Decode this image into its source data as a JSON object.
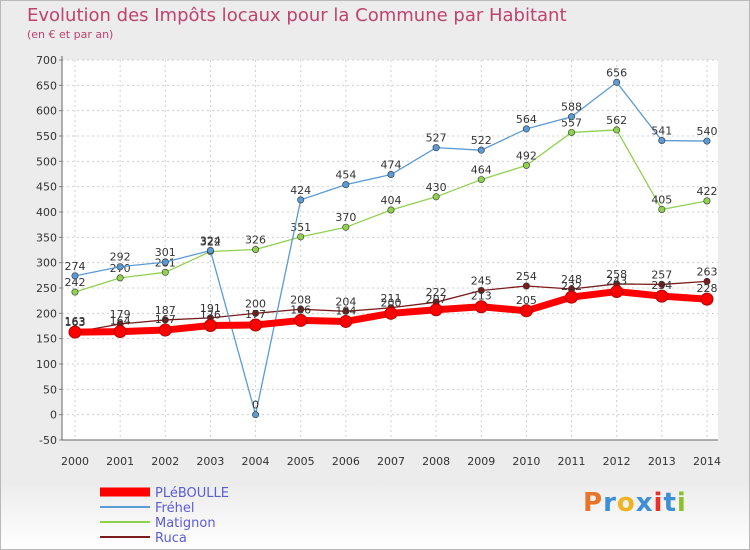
{
  "title": "Evolution des Impôts locaux pour la Commune par Habitant",
  "subtitle": "(en € et par an)",
  "logo": {
    "text": "Proxiti",
    "colors": [
      "#e8742a",
      "#3d8fd8",
      "#f0b21e",
      "#3d8fd8",
      "#e8312a",
      "#3d8fd8",
      "#8dbf2c"
    ]
  },
  "chart_data": {
    "type": "line",
    "x": [
      "2000",
      "2001",
      "2002",
      "2003",
      "2004",
      "2005",
      "2006",
      "2007",
      "2008",
      "2009",
      "2010",
      "2011",
      "2012",
      "2013",
      "2014"
    ],
    "ylim": [
      -50,
      700
    ],
    "yticks": [
      "-50",
      "0",
      "50",
      "100",
      "150",
      "200",
      "250",
      "300",
      "350",
      "400",
      "450",
      "500",
      "550",
      "600",
      "650",
      "700"
    ],
    "grid": true,
    "legend_position": "bottom-left",
    "series": [
      {
        "name": "Ruca",
        "color": "#7a1c1c",
        "values": [
          163,
          179,
          187,
          191,
          200,
          208,
          204,
          211,
          222,
          245,
          254,
          248,
          258,
          257,
          263
        ],
        "labels": [
          "163",
          "179",
          "187",
          "191",
          "200",
          "208",
          "204",
          "211",
          "222",
          "245",
          "254",
          "248",
          "258",
          "257",
          "263"
        ]
      },
      {
        "name": "Matignon",
        "color": "#8fd14f",
        "values": [
          242,
          270,
          281,
          322,
          326,
          351,
          370,
          404,
          430,
          464,
          492,
          557,
          562,
          405,
          422
        ],
        "labels": [
          "242",
          "270",
          "281",
          "322",
          "326",
          "351",
          "370",
          "404",
          "430",
          "464",
          "492",
          "557",
          "562",
          "405",
          "422"
        ]
      },
      {
        "name": "Fréhel",
        "color": "#5b9bd5",
        "values": [
          274,
          292,
          301,
          324,
          0,
          424,
          454,
          474,
          527,
          522,
          564,
          588,
          656,
          541,
          540
        ],
        "labels": [
          "274",
          "292",
          "301",
          "324",
          "0",
          "424",
          "454",
          "474",
          "527",
          "522",
          "564",
          "588",
          "656",
          "541",
          "540"
        ]
      },
      {
        "name": "PLéBOULLE",
        "color": "#ff0000",
        "values": [
          163,
          164,
          167,
          176,
          177,
          186,
          184,
          200,
          207,
          213,
          205,
          232,
          243,
          234,
          228
        ],
        "labels": [
          "163",
          "164",
          "167",
          "176",
          "177",
          "186",
          "184",
          "200",
          "207",
          "213",
          "205",
          "232",
          "243",
          "234",
          "228"
        ]
      }
    ],
    "legend": [
      "PLéBOULLE",
      "Fréhel",
      "Matignon",
      "Ruca"
    ]
  }
}
